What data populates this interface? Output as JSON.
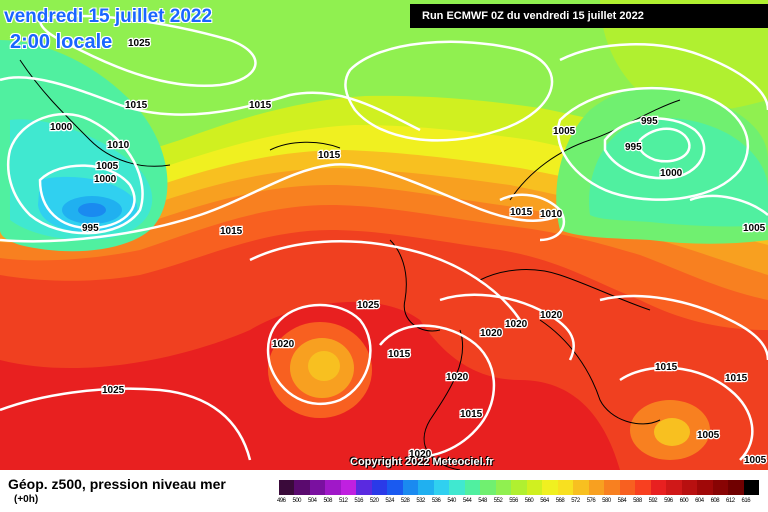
{
  "header": {
    "date": "vendredi 15 juillet 2022",
    "time": "2:00 locale",
    "run": "Run ECMWF 0Z du vendredi 15 juillet 2022"
  },
  "copyright": "Copyright 2022 Meteociel.fr",
  "legend": {
    "title": "Géop. z500, pression niveau mer",
    "subtitle": "(+0h)",
    "ticks": [
      "496",
      "500",
      "504",
      "508",
      "512",
      "516",
      "520",
      "524",
      "528",
      "532",
      "536",
      "540",
      "544",
      "548",
      "552",
      "556",
      "560",
      "564",
      "568",
      "572",
      "576",
      "580",
      "584",
      "588",
      "592",
      "596",
      "600",
      "604",
      "608",
      "612",
      "616"
    ],
    "colors": [
      "#3a0a3a",
      "#5a0a6e",
      "#7a10a0",
      "#a018c8",
      "#c020e0",
      "#5a2ae0",
      "#2a3ae8",
      "#1a5af0",
      "#1a8af0",
      "#20b0f0",
      "#30d0f0",
      "#40e8d0",
      "#50f0a0",
      "#70f070",
      "#90f050",
      "#b0f030",
      "#d0f020",
      "#f0f020",
      "#f8e020",
      "#f8c020",
      "#f8a020",
      "#f88020",
      "#f86020",
      "#f84020",
      "#e82020",
      "#d01818",
      "#b81010",
      "#a00808",
      "#880404",
      "#700000",
      "#000000"
    ]
  },
  "isobars": [
    {
      "label": "1025",
      "id": "iso-1025-nw"
    },
    {
      "label": "1015",
      "id": "iso-1015-a"
    },
    {
      "label": "1015",
      "id": "iso-1015-b"
    },
    {
      "label": "1000",
      "id": "iso-1000-a"
    },
    {
      "label": "1010",
      "id": "iso-1010-a"
    },
    {
      "label": "1005",
      "id": "iso-1005-a"
    },
    {
      "label": "1000",
      "id": "iso-1000-b"
    },
    {
      "label": "995",
      "id": "iso-995-a"
    },
    {
      "label": "1015",
      "id": "iso-1015-c"
    },
    {
      "label": "1015",
      "id": "iso-1015-d"
    },
    {
      "label": "1005",
      "id": "iso-1005-b"
    },
    {
      "label": "995",
      "id": "iso-995-b"
    },
    {
      "label": "995",
      "id": "iso-995-c"
    },
    {
      "label": "1000",
      "id": "iso-1000-c"
    },
    {
      "label": "1015",
      "id": "iso-1015-e"
    },
    {
      "label": "1010",
      "id": "iso-1010-b"
    },
    {
      "label": "1005",
      "id": "iso-1005-c"
    },
    {
      "label": "1025",
      "id": "iso-1025-b"
    },
    {
      "label": "1020",
      "id": "iso-1020-a"
    },
    {
      "label": "1020",
      "id": "iso-1020-b"
    },
    {
      "label": "1020",
      "id": "iso-1020-c"
    },
    {
      "label": "1020",
      "id": "iso-1020-d"
    },
    {
      "label": "1015",
      "id": "iso-1015-f"
    },
    {
      "label": "1020",
      "id": "iso-1020-e"
    },
    {
      "label": "1025",
      "id": "iso-1025-c"
    },
    {
      "label": "1015",
      "id": "iso-1015-g"
    },
    {
      "label": "1015",
      "id": "iso-1015-h"
    },
    {
      "label": "1020",
      "id": "iso-1020-f"
    },
    {
      "label": "1015",
      "id": "iso-1015-i"
    },
    {
      "label": "1005",
      "id": "iso-1005-d"
    },
    {
      "label": "1005",
      "id": "iso-1005-e"
    }
  ]
}
